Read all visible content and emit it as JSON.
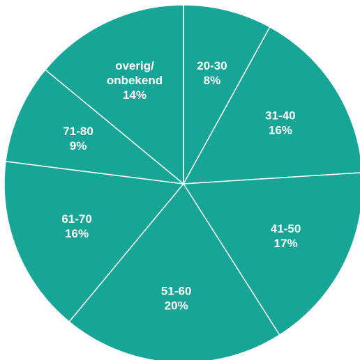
{
  "chart_data": {
    "type": "pie",
    "title": "",
    "start_angle_deg": 90,
    "direction": "clockwise",
    "slice_color": "#16a596",
    "separator_color": "#ffffff",
    "slices": [
      {
        "label": "20-30",
        "value": 8,
        "value_label": "8%"
      },
      {
        "label": "31-40",
        "value": 16,
        "value_label": "16%"
      },
      {
        "label": "41-50",
        "value": 17,
        "value_label": "17%"
      },
      {
        "label": "51-60",
        "value": 20,
        "value_label": "20%"
      },
      {
        "label": "61-70",
        "value": 16,
        "value_label": "16%"
      },
      {
        "label": "71-80",
        "value": 9,
        "value_label": "9%"
      },
      {
        "label": [
          "overig/",
          "onbekend"
        ],
        "value": 14,
        "value_label": "14%"
      }
    ]
  }
}
